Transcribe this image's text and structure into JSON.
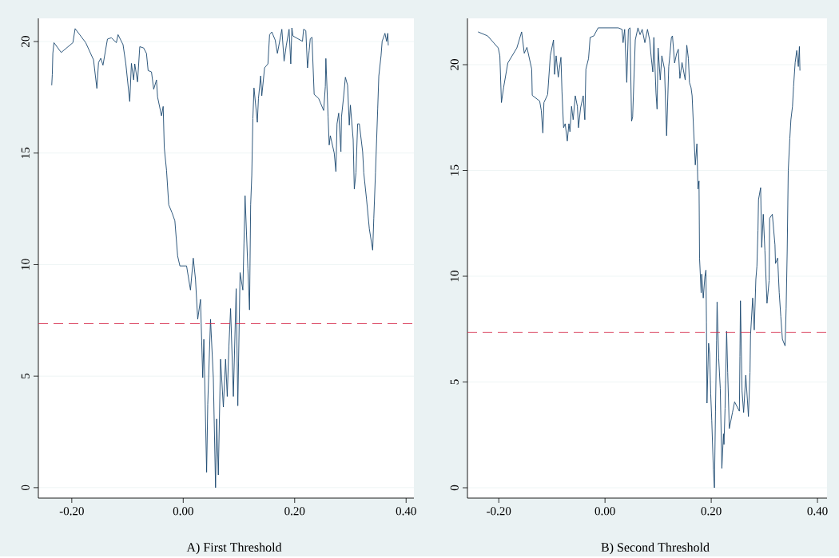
{
  "chart_data": [
    {
      "type": "line",
      "title": "A) First Threshold",
      "xlim": [
        -0.26,
        0.414
      ],
      "ylim": [
        -0.47,
        21.04
      ],
      "xticks": [
        {
          "value": -0.2,
          "label": "-0.20"
        },
        {
          "value": 0.0,
          "label": "0.00"
        },
        {
          "value": 0.2,
          "label": "0.20"
        },
        {
          "value": 0.4,
          "label": "0.40"
        }
      ],
      "yticks": [
        0,
        5,
        10,
        15,
        20
      ],
      "grid": "y",
      "ref_lines": [
        {
          "axis": "y",
          "value": 7.35,
          "color": "#d6294a",
          "line_style": "dashed"
        }
      ],
      "series": [
        {
          "color": "#1a476f",
          "x": [
            -0.236,
            -0.235,
            -0.234,
            -0.232,
            -0.219,
            -0.198,
            -0.194,
            -0.175,
            -0.161,
            -0.155,
            -0.152,
            -0.148,
            -0.144,
            -0.136,
            -0.129,
            -0.12,
            -0.117,
            -0.108,
            -0.103,
            -0.096,
            -0.093,
            -0.089,
            -0.087,
            -0.082,
            -0.078,
            -0.071,
            -0.066,
            -0.063,
            -0.057,
            -0.053,
            -0.048,
            -0.046,
            -0.039,
            -0.036,
            -0.034,
            -0.03,
            -0.026,
            -0.02,
            -0.015,
            -0.01,
            -0.006,
            0.006,
            0.013,
            0.018,
            0.022,
            0.026,
            0.031,
            0.035,
            0.037,
            0.042,
            0.044,
            0.049,
            0.054,
            0.058,
            0.06,
            0.063,
            0.067,
            0.072,
            0.076,
            0.079,
            0.082,
            0.085,
            0.09,
            0.095,
            0.098,
            0.102,
            0.107,
            0.109,
            0.111,
            0.116,
            0.119,
            0.121,
            0.123,
            0.125,
            0.127,
            0.133,
            0.135,
            0.139,
            0.141,
            0.146,
            0.152,
            0.155,
            0.159,
            0.165,
            0.169,
            0.177,
            0.181,
            0.185,
            0.19,
            0.193,
            0.195,
            0.197,
            0.214,
            0.216,
            0.22,
            0.223,
            0.226,
            0.228,
            0.231,
            0.235,
            0.243,
            0.252,
            0.255,
            0.256,
            0.26,
            0.262,
            0.264,
            0.271,
            0.274,
            0.276,
            0.279,
            0.283,
            0.284,
            0.288,
            0.291,
            0.295,
            0.298,
            0.3,
            0.305,
            0.307,
            0.31,
            0.313,
            0.316,
            0.322,
            0.324,
            0.329,
            0.334,
            0.34,
            0.342,
            0.345,
            0.347,
            0.349,
            0.351,
            0.355,
            0.357,
            0.362,
            0.365,
            0.367,
            0.368
          ],
          "values": [
            18.04,
            18.52,
            19.47,
            19.95,
            19.51,
            19.95,
            20.58,
            19.95,
            19.18,
            17.9,
            19.06,
            19.25,
            18.94,
            20.11,
            20.17,
            19.95,
            20.31,
            19.86,
            19.0,
            17.31,
            19.02,
            18.28,
            19.0,
            18.19,
            19.77,
            19.71,
            19.47,
            18.7,
            18.64,
            17.86,
            18.28,
            17.51,
            16.67,
            17.09,
            15.24,
            14.23,
            12.68,
            12.32,
            11.96,
            10.38,
            9.94,
            9.94,
            8.86,
            10.29,
            9.34,
            7.55,
            8.44,
            4.93,
            6.65,
            0.69,
            3.73,
            7.55,
            4.93,
            0.0,
            3.08,
            0.57,
            5.76,
            3.61,
            5.76,
            4.09,
            6.36,
            8.03,
            4.09,
            8.92,
            3.67,
            9.64,
            8.86,
            10.95,
            13.09,
            9.81,
            7.97,
            12.68,
            13.99,
            16.55,
            17.92,
            16.38,
            17.45,
            18.46,
            17.57,
            18.82,
            19.0,
            20.31,
            20.43,
            20.07,
            19.47,
            20.55,
            19.12,
            19.83,
            20.55,
            19.0,
            20.61,
            20.25,
            20.01,
            20.55,
            20.49,
            18.82,
            19.59,
            20.13,
            20.19,
            17.63,
            17.45,
            16.91,
            17.98,
            19.24,
            16.61,
            15.36,
            15.78,
            15.0,
            14.17,
            16.31,
            16.79,
            15.06,
            16.61,
            17.57,
            18.4,
            18.04,
            16.25,
            17.15,
            15.6,
            13.39,
            14.11,
            16.31,
            16.31,
            15.06,
            14.11,
            12.92,
            11.6,
            10.65,
            12.08,
            14.11,
            15.54,
            16.97,
            18.46,
            19.36,
            20.01,
            20.37,
            20.01,
            20.37,
            19.83
          ]
        }
      ]
    },
    {
      "type": "line",
      "title": "B) Second Threshold",
      "xlim": [
        -0.259,
        0.418
      ],
      "ylim": [
        -0.49,
        22.19
      ],
      "xticks": [
        {
          "value": -0.2,
          "label": "-0.20"
        },
        {
          "value": 0.0,
          "label": "0.00"
        },
        {
          "value": 0.2,
          "label": "0.20"
        },
        {
          "value": 0.4,
          "label": "0.40"
        }
      ],
      "yticks": [
        0,
        5,
        10,
        15,
        20
      ],
      "grid": "y",
      "ref_lines": [
        {
          "axis": "y",
          "value": 7.35,
          "color": "#d6294a",
          "line_style": "dashed"
        }
      ],
      "series": [
        {
          "color": "#1a476f",
          "x": [
            -0.239,
            -0.221,
            -0.201,
            -0.198,
            -0.195,
            -0.191,
            -0.183,
            -0.166,
            -0.157,
            -0.152,
            -0.147,
            -0.138,
            -0.137,
            -0.123,
            -0.12,
            -0.117,
            -0.115,
            -0.108,
            -0.103,
            -0.097,
            -0.095,
            -0.092,
            -0.088,
            -0.083,
            -0.081,
            -0.078,
            -0.075,
            -0.071,
            -0.068,
            -0.066,
            -0.063,
            -0.06,
            -0.056,
            -0.052,
            -0.05,
            -0.046,
            -0.041,
            -0.038,
            -0.036,
            -0.031,
            -0.028,
            -0.021,
            -0.013,
            0.025,
            0.032,
            0.034,
            0.037,
            0.041,
            0.044,
            0.047,
            0.05,
            0.052,
            0.057,
            0.062,
            0.066,
            0.07,
            0.075,
            0.08,
            0.084,
            0.087,
            0.09,
            0.092,
            0.096,
            0.098,
            0.1,
            0.104,
            0.107,
            0.112,
            0.116,
            0.12,
            0.122,
            0.125,
            0.127,
            0.131,
            0.135,
            0.138,
            0.141,
            0.145,
            0.151,
            0.154,
            0.157,
            0.159,
            0.162,
            0.164,
            0.167,
            0.17,
            0.173,
            0.175,
            0.177,
            0.178,
            0.181,
            0.182,
            0.185,
            0.188,
            0.19,
            0.191,
            0.192,
            0.195,
            0.197,
            0.199,
            0.201,
            0.204,
            0.206,
            0.208,
            0.21,
            0.211,
            0.214,
            0.217,
            0.22,
            0.223,
            0.224,
            0.226,
            0.229,
            0.231,
            0.234,
            0.24,
            0.244,
            0.253,
            0.254,
            0.255,
            0.258,
            0.261,
            0.265,
            0.268,
            0.27,
            0.273,
            0.274,
            0.278,
            0.281,
            0.284,
            0.286,
            0.288,
            0.289,
            0.293,
            0.295,
            0.298,
            0.301,
            0.305,
            0.309,
            0.31,
            0.315,
            0.32,
            0.321,
            0.325,
            0.328,
            0.331,
            0.334,
            0.339,
            0.341,
            0.343,
            0.345,
            0.348,
            0.35,
            0.353,
            0.355,
            0.358,
            0.361,
            0.364,
            0.366,
            0.367
          ],
          "values": [
            21.55,
            21.36,
            20.79,
            20.42,
            18.21,
            18.91,
            20.08,
            20.79,
            21.55,
            20.54,
            20.82,
            19.79,
            18.55,
            18.28,
            17.84,
            16.77,
            18.21,
            18.59,
            20.42,
            21.17,
            19.54,
            20.42,
            19.41,
            20.35,
            18.72,
            17.02,
            17.21,
            16.39,
            17.21,
            16.83,
            18.03,
            17.4,
            18.53,
            18.03,
            17.02,
            17.96,
            18.53,
            17.4,
            19.79,
            20.29,
            21.29,
            21.36,
            21.74,
            21.74,
            21.67,
            21.04,
            21.67,
            19.16,
            21.67,
            21.74,
            17.33,
            17.52,
            21.17,
            21.74,
            21.42,
            21.67,
            21.04,
            21.67,
            21.17,
            20.35,
            19.66,
            21.29,
            18.65,
            17.9,
            20.79,
            19.28,
            20.42,
            19.79,
            16.64,
            19.91,
            20.42,
            21.29,
            21.36,
            20.08,
            20.54,
            20.73,
            19.35,
            20.1,
            19.28,
            20.92,
            20.29,
            19.16,
            18.91,
            18.53,
            16.83,
            15.26,
            16.26,
            14.12,
            14.5,
            10.86,
            9.22,
            10.1,
            8.97,
            9.97,
            10.29,
            7.84,
            4.0,
            6.83,
            6.33,
            4.44,
            3.18,
            0.86,
            0.0,
            3.62,
            6.95,
            8.78,
            6.14,
            4.69,
            0.92,
            2.55,
            2.05,
            3.75,
            7.4,
            5.45,
            2.8,
            3.56,
            4.06,
            3.62,
            6.2,
            8.84,
            4.57,
            3.56,
            5.32,
            4.19,
            3.37,
            5.45,
            7.21,
            8.97,
            7.46,
            9.85,
            10.48,
            12.18,
            13.62,
            14.19,
            11.36,
            12.93,
            11.23,
            8.72,
            9.79,
            12.74,
            12.93,
            11.48,
            10.6,
            10.86,
            9.22,
            8.09,
            7.02,
            6.71,
            8.46,
            11.17,
            15.01,
            16.52,
            17.4,
            18.03,
            18.97,
            20.1,
            20.67,
            19.91,
            20.86,
            19.72
          ]
        }
      ]
    }
  ]
}
